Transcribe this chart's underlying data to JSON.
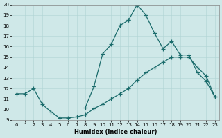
{
  "xlabel": "Humidex (Indice chaleur)",
  "xlim": [
    -0.5,
    23.5
  ],
  "ylim": [
    9,
    20
  ],
  "xticks": [
    0,
    1,
    2,
    3,
    4,
    5,
    6,
    7,
    8,
    9,
    10,
    11,
    12,
    13,
    14,
    15,
    16,
    17,
    18,
    19,
    20,
    21,
    22,
    23
  ],
  "yticks": [
    9,
    10,
    11,
    12,
    13,
    14,
    15,
    16,
    17,
    18,
    19,
    20
  ],
  "bg_color": "#cfe8e8",
  "line_color": "#1a6b6b",
  "line1_x": [
    0,
    1,
    2,
    3,
    4,
    5,
    6,
    7,
    8,
    9,
    10,
    11,
    12,
    13,
    14,
    15,
    16,
    17,
    18,
    19,
    20,
    21,
    22,
    23
  ],
  "line1_y": [
    11.5,
    11.5,
    12.0,
    10.5,
    9.8,
    9.2,
    9.2,
    9.3,
    9.5,
    10.1,
    10.5,
    11.0,
    11.5,
    12.0,
    12.8,
    13.5,
    14.0,
    14.5,
    15.0,
    15.0,
    15.0,
    14.0,
    13.2,
    11.2
  ],
  "line2_x": [
    8,
    9,
    10,
    11,
    12,
    13,
    13,
    14,
    14,
    15,
    16,
    17,
    18,
    19,
    20,
    21,
    22,
    23
  ],
  "line2_y": [
    10.2,
    12.2,
    15.3,
    16.2,
    18.0,
    18.5,
    18.5,
    20.0,
    20.0,
    19.0,
    17.3,
    15.8,
    16.5,
    15.2,
    15.2,
    13.5,
    12.7,
    11.2
  ]
}
